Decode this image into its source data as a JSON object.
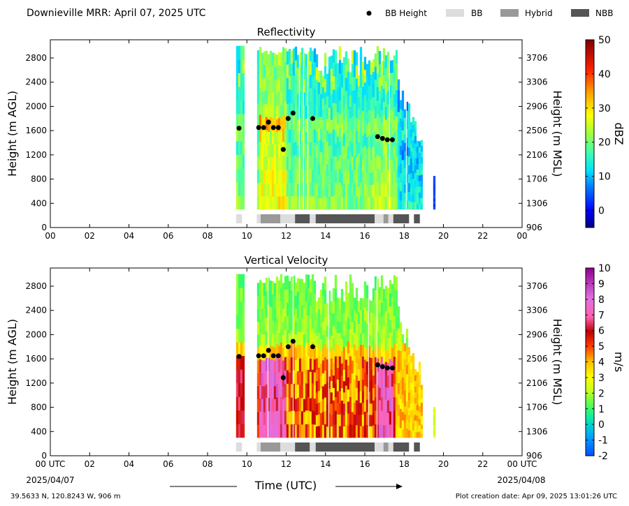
{
  "figure": {
    "title": "Downieville MRR:  April 07, 2025 UTC",
    "legend": [
      {
        "label": "BB Height",
        "marker": "dot",
        "color": "#000000"
      },
      {
        "label": "BB",
        "marker": "box",
        "color": "#dddddd"
      },
      {
        "label": "Hybrid",
        "marker": "box",
        "color": "#999999"
      },
      {
        "label": "NBB",
        "marker": "box",
        "color": "#555555"
      }
    ],
    "footer_left": "39.5633 N, 120.8243 W, 906 m",
    "footer_right": "Plot creation date: Apr 09, 2025 13:01:26 UTC",
    "xlabel": "Time (UTC)",
    "x_start_date": "2025/04/07",
    "x_end_date": "2025/04/08"
  },
  "chart_data": [
    {
      "type": "heatmap",
      "title": "Reflectivity",
      "xlabel": "",
      "ylabel": "Height (m AGL)",
      "ylabel_right": "Height (m MSL)",
      "xlim": [
        0,
        24
      ],
      "ylim": [
        0,
        3100
      ],
      "x_ticks": [
        "00",
        "02",
        "04",
        "06",
        "08",
        "10",
        "12",
        "14",
        "16",
        "18",
        "20",
        "22",
        "00"
      ],
      "y_ticks": [
        0,
        400,
        800,
        1200,
        1600,
        2000,
        2400,
        2800
      ],
      "y_ticks_right": [
        906,
        1306,
        1706,
        2106,
        2506,
        2906,
        3306,
        3706
      ],
      "colorbar": {
        "label": "dBZ",
        "min": -5,
        "max": 50,
        "ticks": [
          0,
          10,
          20,
          30,
          40,
          50
        ]
      },
      "bb_height_points": [
        {
          "x": 9.6,
          "y": 1640
        },
        {
          "x": 10.6,
          "y": 1650
        },
        {
          "x": 10.85,
          "y": 1650
        },
        {
          "x": 11.1,
          "y": 1740
        },
        {
          "x": 11.35,
          "y": 1650
        },
        {
          "x": 11.6,
          "y": 1650
        },
        {
          "x": 11.85,
          "y": 1290
        },
        {
          "x": 12.1,
          "y": 1800
        },
        {
          "x": 12.35,
          "y": 1890
        },
        {
          "x": 13.35,
          "y": 1800
        },
        {
          "x": 16.65,
          "y": 1500
        },
        {
          "x": 16.9,
          "y": 1470
        },
        {
          "x": 17.15,
          "y": 1450
        },
        {
          "x": 17.4,
          "y": 1450
        }
      ],
      "bb_type_segments": [
        {
          "start": 9.45,
          "end": 9.75,
          "type": "BB"
        },
        {
          "start": 10.5,
          "end": 10.7,
          "type": "BB"
        },
        {
          "start": 10.7,
          "end": 11.7,
          "type": "Hybrid"
        },
        {
          "start": 11.7,
          "end": 12.45,
          "type": "BB"
        },
        {
          "start": 12.45,
          "end": 13.2,
          "type": "NBB"
        },
        {
          "start": 13.2,
          "end": 13.5,
          "type": "BB"
        },
        {
          "start": 13.5,
          "end": 16.5,
          "type": "NBB"
        },
        {
          "start": 16.5,
          "end": 16.95,
          "type": "BB"
        },
        {
          "start": 16.95,
          "end": 17.2,
          "type": "Hybrid"
        },
        {
          "start": 17.2,
          "end": 17.45,
          "type": "BB"
        },
        {
          "start": 17.45,
          "end": 18.25,
          "type": "NBB"
        },
        {
          "start": 18.5,
          "end": 18.8,
          "type": "NBB"
        }
      ]
    },
    {
      "type": "heatmap",
      "title": "Vertical Velocity",
      "xlabel": "Time (UTC)",
      "ylabel": "Height (m AGL)",
      "ylabel_right": "Height (m MSL)",
      "xlim": [
        0,
        24
      ],
      "ylim": [
        0,
        3100
      ],
      "x_ticks": [
        "00 UTC",
        "02",
        "04",
        "06",
        "08",
        "10",
        "12",
        "14",
        "16",
        "18",
        "20",
        "22",
        "00 UTC"
      ],
      "y_ticks": [
        0,
        400,
        800,
        1200,
        1600,
        2000,
        2400,
        2800
      ],
      "y_ticks_right": [
        906,
        1306,
        1706,
        2106,
        2506,
        2906,
        3306,
        3706
      ],
      "colorbar": {
        "label": "m/s",
        "min": -2,
        "max": 10,
        "ticks": [
          -2,
          -1,
          0,
          1,
          2,
          3,
          4,
          5,
          6,
          7,
          8,
          9,
          10
        ]
      },
      "bb_height_points": [
        {
          "x": 9.6,
          "y": 1640
        },
        {
          "x": 10.6,
          "y": 1650
        },
        {
          "x": 10.85,
          "y": 1650
        },
        {
          "x": 11.1,
          "y": 1740
        },
        {
          "x": 11.35,
          "y": 1650
        },
        {
          "x": 11.6,
          "y": 1650
        },
        {
          "x": 11.85,
          "y": 1290
        },
        {
          "x": 12.1,
          "y": 1800
        },
        {
          "x": 12.35,
          "y": 1890
        },
        {
          "x": 13.35,
          "y": 1800
        },
        {
          "x": 16.65,
          "y": 1500
        },
        {
          "x": 16.9,
          "y": 1470
        },
        {
          "x": 17.15,
          "y": 1450
        },
        {
          "x": 17.4,
          "y": 1450
        }
      ],
      "bb_type_segments": [
        {
          "start": 9.45,
          "end": 9.75,
          "type": "BB"
        },
        {
          "start": 10.5,
          "end": 10.7,
          "type": "BB"
        },
        {
          "start": 10.7,
          "end": 11.7,
          "type": "Hybrid"
        },
        {
          "start": 11.7,
          "end": 12.45,
          "type": "BB"
        },
        {
          "start": 12.45,
          "end": 13.2,
          "type": "NBB"
        },
        {
          "start": 13.2,
          "end": 13.5,
          "type": "BB"
        },
        {
          "start": 13.5,
          "end": 16.5,
          "type": "NBB"
        },
        {
          "start": 16.5,
          "end": 16.95,
          "type": "BB"
        },
        {
          "start": 16.95,
          "end": 17.2,
          "type": "Hybrid"
        },
        {
          "start": 17.2,
          "end": 17.45,
          "type": "BB"
        },
        {
          "start": 17.45,
          "end": 18.25,
          "type": "NBB"
        },
        {
          "start": 18.5,
          "end": 18.8,
          "type": "NBB"
        }
      ]
    }
  ]
}
